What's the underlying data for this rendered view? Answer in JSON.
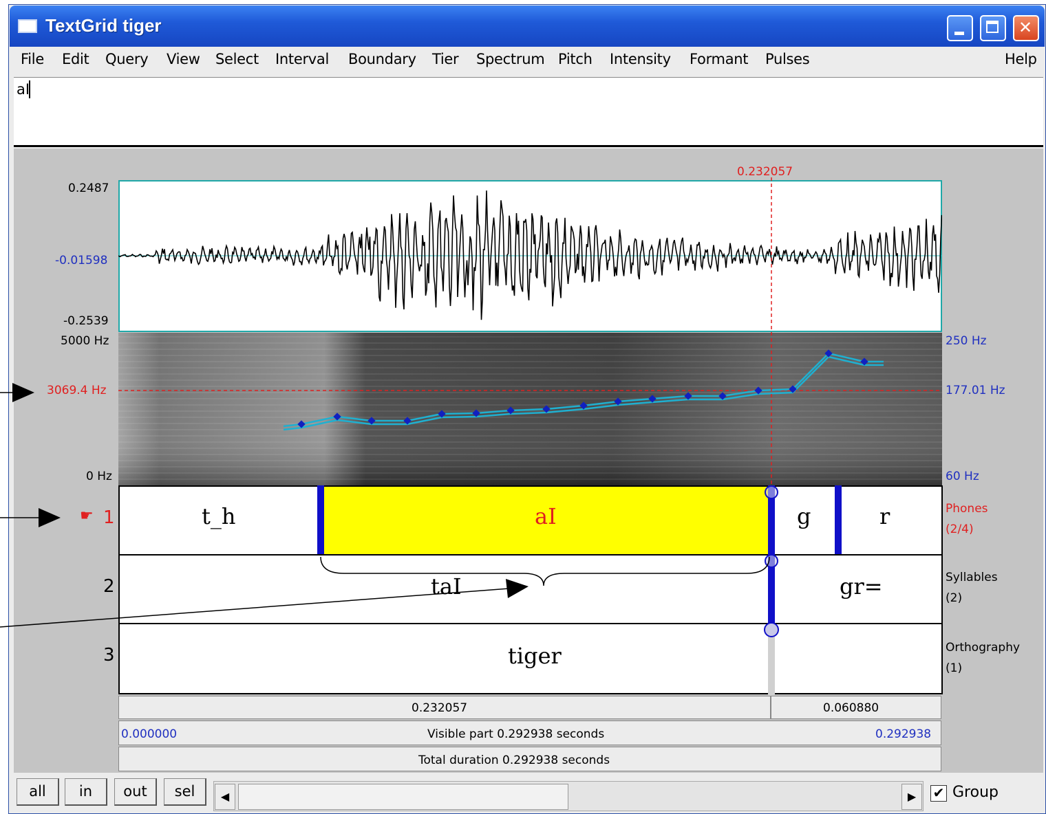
{
  "window": {
    "title": "TextGrid tiger"
  },
  "menu": [
    "File",
    "Edit",
    "Query",
    "View",
    "Select",
    "Interval",
    "Boundary",
    "Tier",
    "Spectrum",
    "Pitch",
    "Intensity",
    "Formant",
    "Pulses"
  ],
  "help_label": "Help",
  "text_field": {
    "value": "aI"
  },
  "cursor": {
    "time_label": "0.232057",
    "frequency_label": "3069.4 Hz",
    "pitch_label": "177.01 Hz"
  },
  "waveform": {
    "max": "0.2487",
    "mid": "-0.01598",
    "min": "-0.2539"
  },
  "spectrogram": {
    "top": "5000 Hz",
    "bottom": "0 Hz"
  },
  "pitch": {
    "top": "250 Hz",
    "bottom": "60 Hz"
  },
  "tiers": {
    "phones": {
      "number": "1",
      "name": "Phones",
      "count": "(2/4)",
      "intervals": [
        "t_h",
        "aI",
        "g",
        "r"
      ]
    },
    "syllables": {
      "number": "2",
      "name": "Syllables",
      "count": "(2)",
      "intervals": [
        "taI",
        "gr="
      ]
    },
    "orthography": {
      "number": "3",
      "name": "Orthography",
      "count": "(1)",
      "intervals": [
        "tiger"
      ]
    }
  },
  "durations": {
    "left": "0.232057",
    "right": "0.060880"
  },
  "visible": {
    "start": "0.000000",
    "label": "Visible part 0.292938 seconds",
    "end": "0.292938"
  },
  "total": {
    "label": "Total duration 0.292938 seconds"
  },
  "buttons": {
    "all": "all",
    "in": "in",
    "out": "out",
    "sel": "sel"
  },
  "group": {
    "label": "Group",
    "checked": true
  },
  "colors": {
    "selection": "#ffff00",
    "cursor": "#e02020",
    "pitch": "#1fb0d0",
    "boundary": "#1010c8"
  }
}
